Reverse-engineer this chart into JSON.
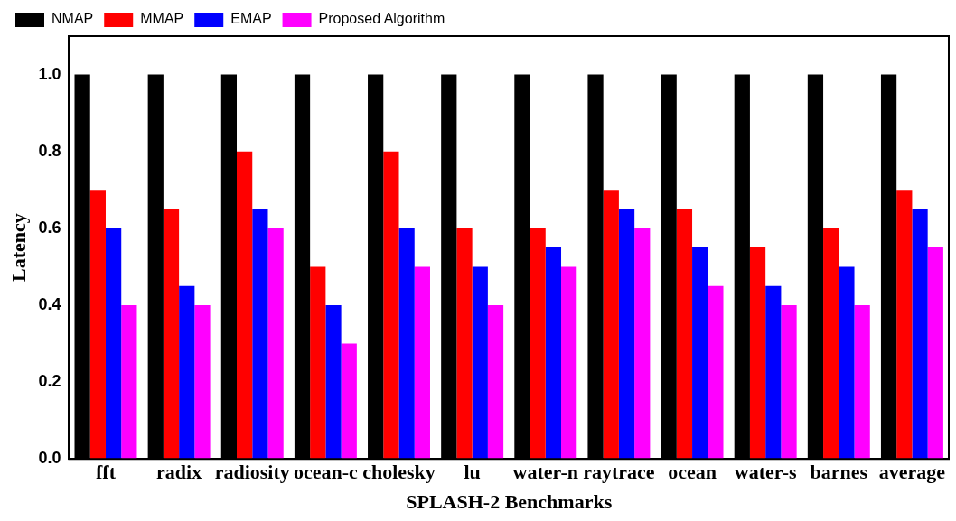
{
  "chart_data": {
    "type": "bar",
    "xlabel": "SPLASH-2 Benchmarks",
    "ylabel": "Latency",
    "categories": [
      "fft",
      "radix",
      "radiosity",
      "ocean-c",
      "cholesky",
      "lu",
      "water-n",
      "raytrace",
      "ocean",
      "water-s",
      "barnes",
      "average"
    ],
    "series": [
      {
        "name": "NMAP",
        "color": "#000000",
        "values": [
          1.0,
          1.0,
          1.0,
          1.0,
          1.0,
          1.0,
          1.0,
          1.0,
          1.0,
          1.0,
          1.0,
          1.0
        ]
      },
      {
        "name": "MMAP",
        "color": "#ff0000",
        "values": [
          0.7,
          0.65,
          0.8,
          0.5,
          0.8,
          0.6,
          0.6,
          0.7,
          0.65,
          0.55,
          0.6,
          0.7
        ]
      },
      {
        "name": "EMAP",
        "color": "#0000ff",
        "values": [
          0.6,
          0.45,
          0.65,
          0.4,
          0.6,
          0.5,
          0.55,
          0.65,
          0.55,
          0.45,
          0.5,
          0.65
        ]
      },
      {
        "name": "Proposed Algorithm",
        "color": "#ff00ff",
        "values": [
          0.4,
          0.4,
          0.6,
          0.3,
          0.5,
          0.4,
          0.5,
          0.6,
          0.45,
          0.4,
          0.4,
          0.55
        ]
      }
    ],
    "ylim": [
      0,
      1.1
    ],
    "yticks": [
      {
        "value": 0,
        "label": "0.0"
      },
      {
        "value": 0.2,
        "label": "0.2"
      },
      {
        "value": 0.4,
        "label": "0.4"
      },
      {
        "value": 0.6,
        "label": "0.6"
      },
      {
        "value": 0.8,
        "label": "0.8"
      },
      {
        "value": 1.0,
        "label": "1.0"
      }
    ],
    "grid": false,
    "legend": "top left"
  }
}
